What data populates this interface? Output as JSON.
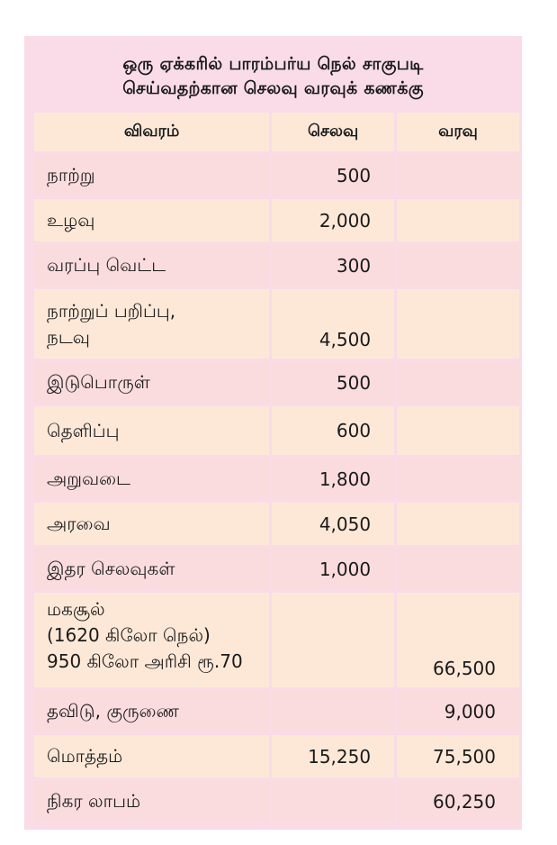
{
  "title": {
    "line1": "ஒரு ஏக்கரில் பாரம்பர்ய நெல் சாகுபடி",
    "line2": "செய்வதற்கான செலவு வரவுக் கணக்கு"
  },
  "table": {
    "headers": [
      "விவரம்",
      "செலவு",
      "வரவு"
    ],
    "rows": [
      {
        "item": "நாற்று",
        "expense": "500",
        "income": ""
      },
      {
        "item": "உழவு",
        "expense": "2,000",
        "income": ""
      },
      {
        "item": "வரப்பு வெட்ட",
        "expense": "300",
        "income": ""
      },
      {
        "item_lines": [
          "நாற்றுப் பறிப்பு,",
          "நடவு"
        ],
        "expense": "4,500",
        "income": ""
      },
      {
        "item": "இடுபொருள்",
        "expense": "500",
        "income": ""
      },
      {
        "item": "தெளிப்பு",
        "expense": "600",
        "income": ""
      },
      {
        "item": "அறுவடை",
        "expense": "1,800",
        "income": ""
      },
      {
        "item": "அரவை",
        "expense": "4,050",
        "income": ""
      },
      {
        "item": "இதர செலவுகள்",
        "expense": "1,000",
        "income": ""
      },
      {
        "item_lines": [
          "மகசூல்",
          "(1620 கிலோ நெல்)",
          "950 கிலோ அரிசி ரூ.70"
        ],
        "expense": "",
        "income": "66,500"
      },
      {
        "item": "தவிடு, குருணை",
        "expense": "",
        "income": "9,000"
      },
      {
        "item": "மொத்தம்",
        "expense": "15,250",
        "income": "75,500"
      },
      {
        "item": "நிகர லாபம்",
        "expense": "",
        "income": "60,250"
      }
    ]
  }
}
